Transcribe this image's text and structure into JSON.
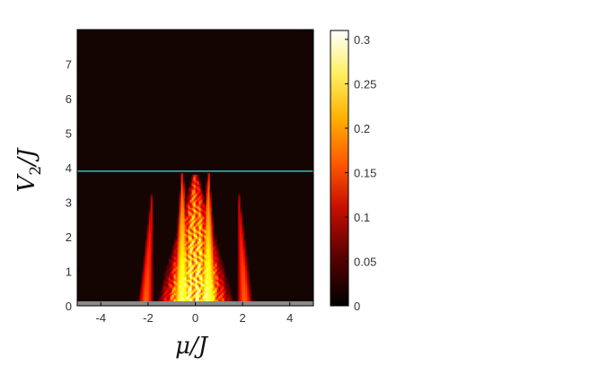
{
  "chart_data": {
    "type": "heatmap",
    "title": "",
    "xlabel": "μ/J",
    "ylabel_main": "V",
    "ylabel_sub": "2",
    "ylabel_tail": "/J",
    "xlim": [
      -5,
      5
    ],
    "ylim": [
      0,
      8
    ],
    "x_ticks": [
      "-4",
      "-2",
      "0",
      "2",
      "4"
    ],
    "y_ticks": [
      "0",
      "1",
      "2",
      "3",
      "4",
      "5",
      "6",
      "7"
    ],
    "colorbar": {
      "range": [
        0,
        0.31
      ],
      "ticks": [
        "0",
        "0.05",
        "0.1",
        "0.15",
        "0.2",
        "0.25",
        "0.3"
      ],
      "colormap": "hot"
    },
    "hline": {
      "y": 3.9,
      "color": "#45b8b8"
    },
    "background_color": "#140402",
    "baseline_band": {
      "y": 0,
      "color": "#8a8a8a"
    },
    "lobes": [
      {
        "name": "central",
        "x_center": 0.0,
        "x_halfwidth_base": 1.75,
        "y_top": 3.8,
        "peak": 0.29,
        "pattern": true
      },
      {
        "name": "left-inner",
        "x_center": -0.55,
        "x_halfwidth_base": 0.5,
        "y_top": 3.85,
        "peak": 0.26,
        "pattern": false
      },
      {
        "name": "right-inner",
        "x_center": 0.55,
        "x_halfwidth_base": 0.5,
        "y_top": 3.85,
        "peak": 0.26,
        "pattern": false
      },
      {
        "name": "left-outer-wing",
        "x_center": -2.1,
        "x_halfwidth_base": 0.35,
        "y_top": 3.3,
        "peak": 0.16,
        "pattern": false,
        "tilt": 0.55
      },
      {
        "name": "right-outer-wing",
        "x_center": 2.1,
        "x_halfwidth_base": 0.35,
        "y_top": 3.3,
        "peak": 0.16,
        "pattern": false,
        "tilt": -0.55
      }
    ]
  }
}
